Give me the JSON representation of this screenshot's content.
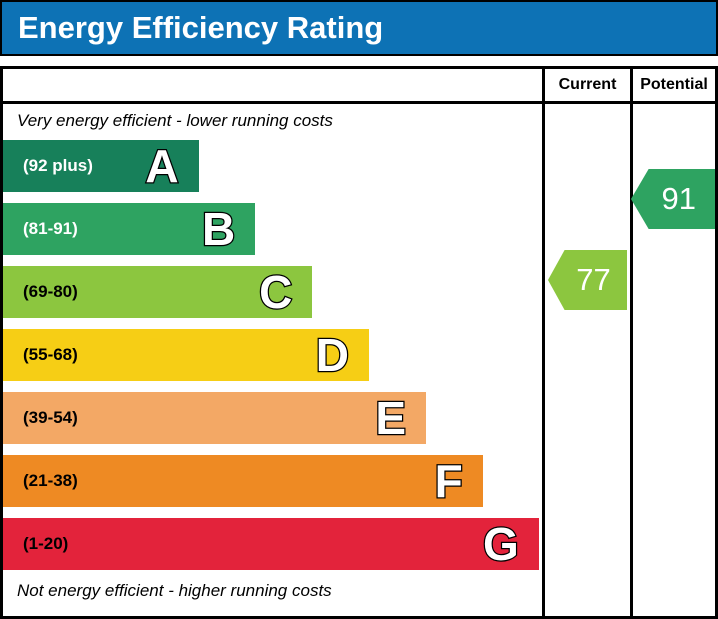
{
  "title": "Energy Efficiency Rating",
  "colors": {
    "header_bar": "#0d72b5",
    "border": "#000000"
  },
  "table": {
    "current_header": "Current",
    "potential_header": "Potential"
  },
  "notes": {
    "top": "Very energy efficient - lower running costs",
    "bottom": "Not energy efficient - higher running costs"
  },
  "bands": [
    {
      "letter": "A",
      "range": "(92 plus)",
      "color": "#17805a",
      "width": "36.3%"
    },
    {
      "letter": "B",
      "range": "(81-91)",
      "color": "#2ea361",
      "width": "46.8%"
    },
    {
      "letter": "C",
      "range": "(69-80)",
      "color": "#8cc63f",
      "width": "57.4%"
    },
    {
      "letter": "D",
      "range": "(55-68)",
      "color": "#f6ce15",
      "width": "67.9%"
    },
    {
      "letter": "E",
      "range": "(39-54)",
      "color": "#f3a865",
      "width": "78.5%"
    },
    {
      "letter": "F",
      "range": "(21-38)",
      "color": "#ee8a23",
      "width": "89.0%"
    },
    {
      "letter": "G",
      "range": "(1-20)",
      "color": "#e3233b",
      "width": "99.4%"
    }
  ],
  "ratings": {
    "current": {
      "value": "77",
      "color": "#8cc63f"
    },
    "potential": {
      "value": "91",
      "color": "#2ea361"
    }
  },
  "chart_data": {
    "type": "bar",
    "title": "Energy Efficiency Rating",
    "orientation": "horizontal",
    "categories": [
      "A",
      "B",
      "C",
      "D",
      "E",
      "F",
      "G"
    ],
    "band_score_ranges": [
      "92 plus",
      "81-91",
      "69-80",
      "55-68",
      "39-54",
      "21-38",
      "1-20"
    ],
    "band_colors": [
      "#17805a",
      "#2ea361",
      "#8cc63f",
      "#f6ce15",
      "#f3a865",
      "#ee8a23",
      "#e3233b"
    ],
    "bar_relative_widths": [
      0.36,
      0.47,
      0.57,
      0.68,
      0.79,
      0.89,
      0.99
    ],
    "columns": [
      "Current",
      "Potential"
    ],
    "annotations": {
      "current": {
        "value": 77,
        "band": "C",
        "color": "#8cc63f"
      },
      "potential": {
        "value": 91,
        "band": "B",
        "color": "#2ea361"
      }
    },
    "note_top": "Very energy efficient - lower running costs",
    "note_bottom": "Not energy efficient - higher running costs"
  }
}
